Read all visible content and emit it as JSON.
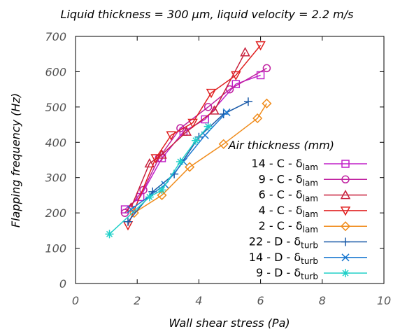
{
  "chart_data": {
    "type": "line",
    "title": "Liquid thickness = 300 µm, liquid velocity = 2.2 m/s",
    "xlabel": "Wall shear stress (Pa)",
    "ylabel": "Flapping frequency (Hz)",
    "xlim": [
      0,
      10
    ],
    "ylim": [
      0,
      700
    ],
    "xticks": [
      "0",
      "2",
      "4",
      "6",
      "8",
      "10"
    ],
    "yticks": [
      "0",
      "100",
      "200",
      "300",
      "400",
      "500",
      "600",
      "700"
    ],
    "grid": false,
    "legend": {
      "title": "Air thickness (mm)",
      "position": "right"
    },
    "series": [
      {
        "name": "14 - C - δlam",
        "label_main": "14 - C - δ",
        "label_sub": "lam",
        "color": "#c020c8",
        "marker": "square",
        "x": [
          1.6,
          2.1,
          2.8,
          3.5,
          4.2,
          5.2,
          6.0
        ],
        "y": [
          210,
          245,
          355,
          430,
          465,
          565,
          590
        ]
      },
      {
        "name": "9 - C - δlam",
        "label_main": "9 - C - δ",
        "label_sub": "lam",
        "color": "#c020a0",
        "marker": "circle",
        "x": [
          1.6,
          2.2,
          2.7,
          3.4,
          4.3,
          5.0,
          6.2
        ],
        "y": [
          200,
          265,
          355,
          440,
          500,
          550,
          610
        ]
      },
      {
        "name": "6 - C - δlam",
        "label_main": "6 - C - δ",
        "label_sub": "lam",
        "color": "#c8203c",
        "marker": "triangle-up",
        "x": [
          1.8,
          2.4,
          2.8,
          3.6,
          4.5,
          5.5
        ],
        "y": [
          215,
          340,
          365,
          430,
          490,
          655
        ]
      },
      {
        "name": "4 - C - δlam",
        "label_main": "4 - C - δ",
        "label_sub": "lam",
        "color": "#e02020",
        "marker": "triangle-down",
        "x": [
          1.7,
          2.6,
          3.1,
          3.8,
          4.4,
          5.2,
          6.0
        ],
        "y": [
          165,
          355,
          420,
          455,
          540,
          590,
          675
        ]
      },
      {
        "name": "2 - C - δlam",
        "label_main": "2 - C - δ",
        "label_sub": "lam",
        "color": "#f08c1c",
        "marker": "diamond",
        "x": [
          1.9,
          2.8,
          3.7,
          4.8,
          5.9,
          6.2
        ],
        "y": [
          200,
          250,
          330,
          395,
          468,
          510
        ]
      },
      {
        "name": "22 - D - δturb",
        "label_main": "22 - D - δ",
        "label_sub": "turb",
        "color": "#1a5aa8",
        "marker": "plus",
        "x": [
          1.7,
          2.5,
          3.2,
          4.0,
          4.8,
          5.6
        ],
        "y": [
          175,
          260,
          310,
          415,
          480,
          515
        ]
      },
      {
        "name": "14 - D - δturb",
        "label_main": "14 - D - δ",
        "label_sub": "turb",
        "color": "#1a78d0",
        "marker": "x",
        "x": [
          1.8,
          2.9,
          3.5,
          4.2,
          4.9
        ],
        "y": [
          210,
          280,
          345,
          420,
          485
        ]
      },
      {
        "name": "9 - D - δturb",
        "label_main": "9 - D - δ",
        "label_sub": "turb",
        "color": "#20d0c8",
        "marker": "star",
        "x": [
          1.1,
          2.4,
          2.8,
          3.4,
          3.9,
          4.3
        ],
        "y": [
          140,
          245,
          265,
          345,
          405,
          445
        ]
      }
    ]
  }
}
